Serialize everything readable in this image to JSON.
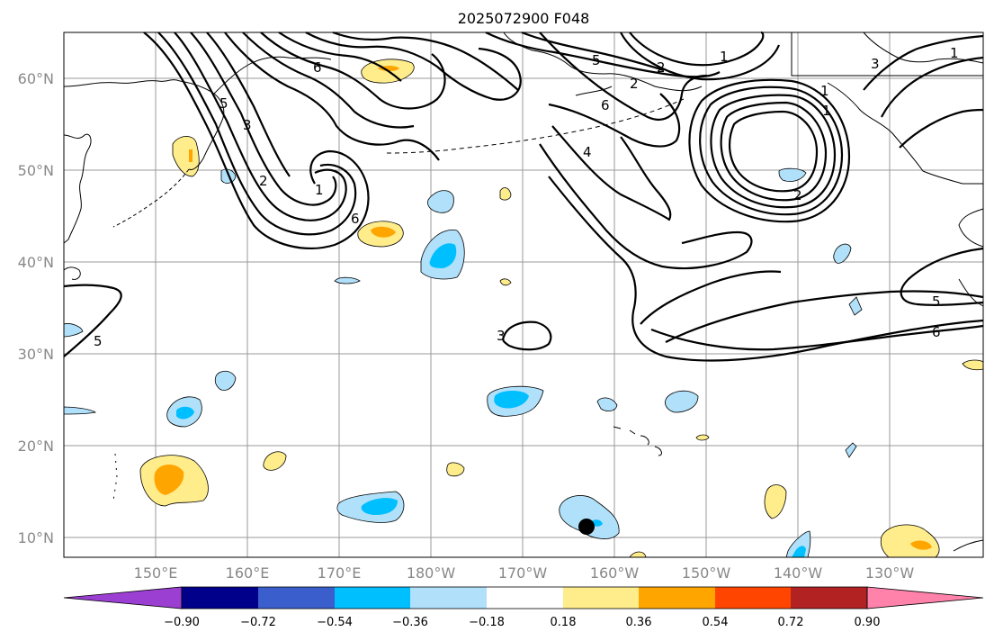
{
  "title": "2025072900 F048",
  "map": {
    "lat_labels": [
      "60°N",
      "50°N",
      "40°N",
      "30°N",
      "20°N",
      "10°N"
    ],
    "lon_labels": [
      "150°E",
      "160°E",
      "170°E",
      "180°W",
      "170°W",
      "160°W",
      "150°W",
      "140°W",
      "130°W"
    ],
    "contour_labels": [
      "6",
      "5",
      "3",
      "2",
      "1",
      "6",
      "5",
      "2",
      "1",
      "2",
      "6",
      "4",
      "2",
      "1",
      "3",
      "1",
      "5",
      "6",
      "3",
      "5",
      "1"
    ]
  },
  "colorbar": {
    "colors": [
      "#9a3fd1",
      "#00008b",
      "#3a5fcd",
      "#00bfff",
      "#b0e0fa",
      "#ffffff",
      "#ffec8b",
      "#ffa500",
      "#ff4500",
      "#b22222",
      "#ff82ab"
    ],
    "tick_labels": [
      "−0.90",
      "−0.72",
      "−0.54",
      "−0.36",
      "−0.18",
      "0.18",
      "0.36",
      "0.54",
      "0.72",
      "0.90"
    ]
  }
}
